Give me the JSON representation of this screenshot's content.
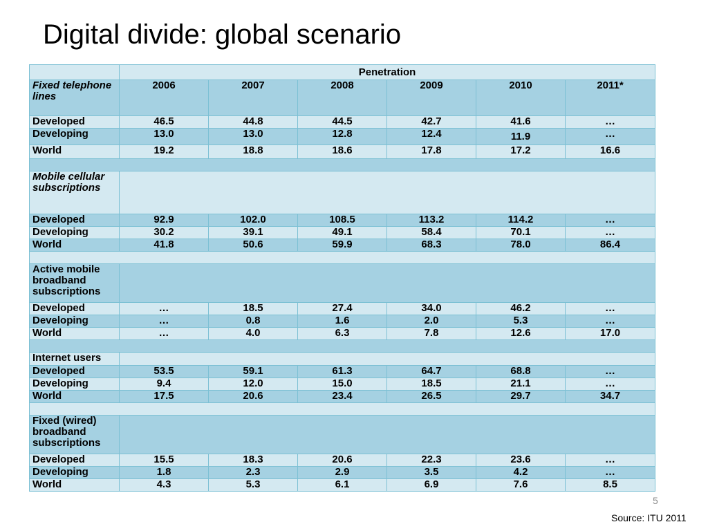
{
  "title": "Digital divide: global scenario",
  "table": {
    "header": "Penetration",
    "years": [
      "2006",
      "2007",
      "2008",
      "2009",
      "2010",
      "2011*"
    ],
    "sections": [
      {
        "label": "Fixed telephone lines",
        "italic": true,
        "rows": [
          {
            "name": "Developed",
            "values": [
              "46.5",
              "44.8",
              "44.5",
              "42.7",
              "41.6",
              "…"
            ]
          },
          {
            "name": "Developing",
            "values": [
              "13.0",
              "13.0",
              "12.8",
              "12.4",
              "11.9",
              "…"
            ]
          },
          {
            "name": "World",
            "values": [
              "19.2",
              "18.8",
              "18.6",
              "17.8",
              "17.2",
              "16.6"
            ]
          }
        ]
      },
      {
        "label": "Mobile cellular subscriptions",
        "italic": true,
        "rows": [
          {
            "name": "Developed",
            "values": [
              "92.9",
              "102.0",
              "108.5",
              "113.2",
              "114.2",
              "…"
            ]
          },
          {
            "name": "Developing",
            "values": [
              "30.2",
              "39.1",
              "49.1",
              "58.4",
              "70.1",
              "…"
            ]
          },
          {
            "name": "World",
            "values": [
              "41.8",
              "50.6",
              "59.9",
              "68.3",
              "78.0",
              "86.4"
            ]
          }
        ]
      },
      {
        "label": "Active mobile broadband subscriptions",
        "italic": false,
        "rows": [
          {
            "name": "Developed",
            "values": [
              "…",
              "18.5",
              "27.4",
              "34.0",
              "46.2",
              "…"
            ]
          },
          {
            "name": "Developing",
            "values": [
              "…",
              "0.8",
              "1.6",
              "2.0",
              "5.3",
              "…"
            ]
          },
          {
            "name": "World",
            "values": [
              "…",
              "4.0",
              "6.3",
              "7.8",
              "12.6",
              "17.0"
            ]
          }
        ]
      },
      {
        "label": "Internet users",
        "italic": false,
        "rows": [
          {
            "name": "Developed",
            "values": [
              "53.5",
              "59.1",
              "61.3",
              "64.7",
              "68.8",
              "…"
            ]
          },
          {
            "name": "Developing",
            "values": [
              "9.4",
              "12.0",
              "15.0",
              "18.5",
              "21.1",
              "…"
            ]
          },
          {
            "name": "World",
            "values": [
              "17.5",
              "20.6",
              "23.4",
              "26.5",
              "29.7",
              "34.7"
            ]
          }
        ]
      },
      {
        "label": "Fixed (wired) broadband subscriptions",
        "italic": false,
        "rows": [
          {
            "name": "Developed",
            "values": [
              "15.5",
              "18.3",
              "20.6",
              "22.3",
              "23.6",
              "…"
            ]
          },
          {
            "name": "Developing",
            "values": [
              "1.8",
              "2.3",
              "2.9",
              "3.5",
              "4.2",
              "…"
            ]
          },
          {
            "name": "World",
            "values": [
              "4.3",
              "5.3",
              "6.1",
              "6.9",
              "7.6",
              "8.5"
            ]
          }
        ]
      }
    ]
  },
  "footer": {
    "page_number": "5",
    "source": "Source: ITU 2011"
  },
  "colors": {
    "light_row": "#d4e9f1",
    "dark_row": "#a5d1e2",
    "border": "#7cc0d4"
  }
}
